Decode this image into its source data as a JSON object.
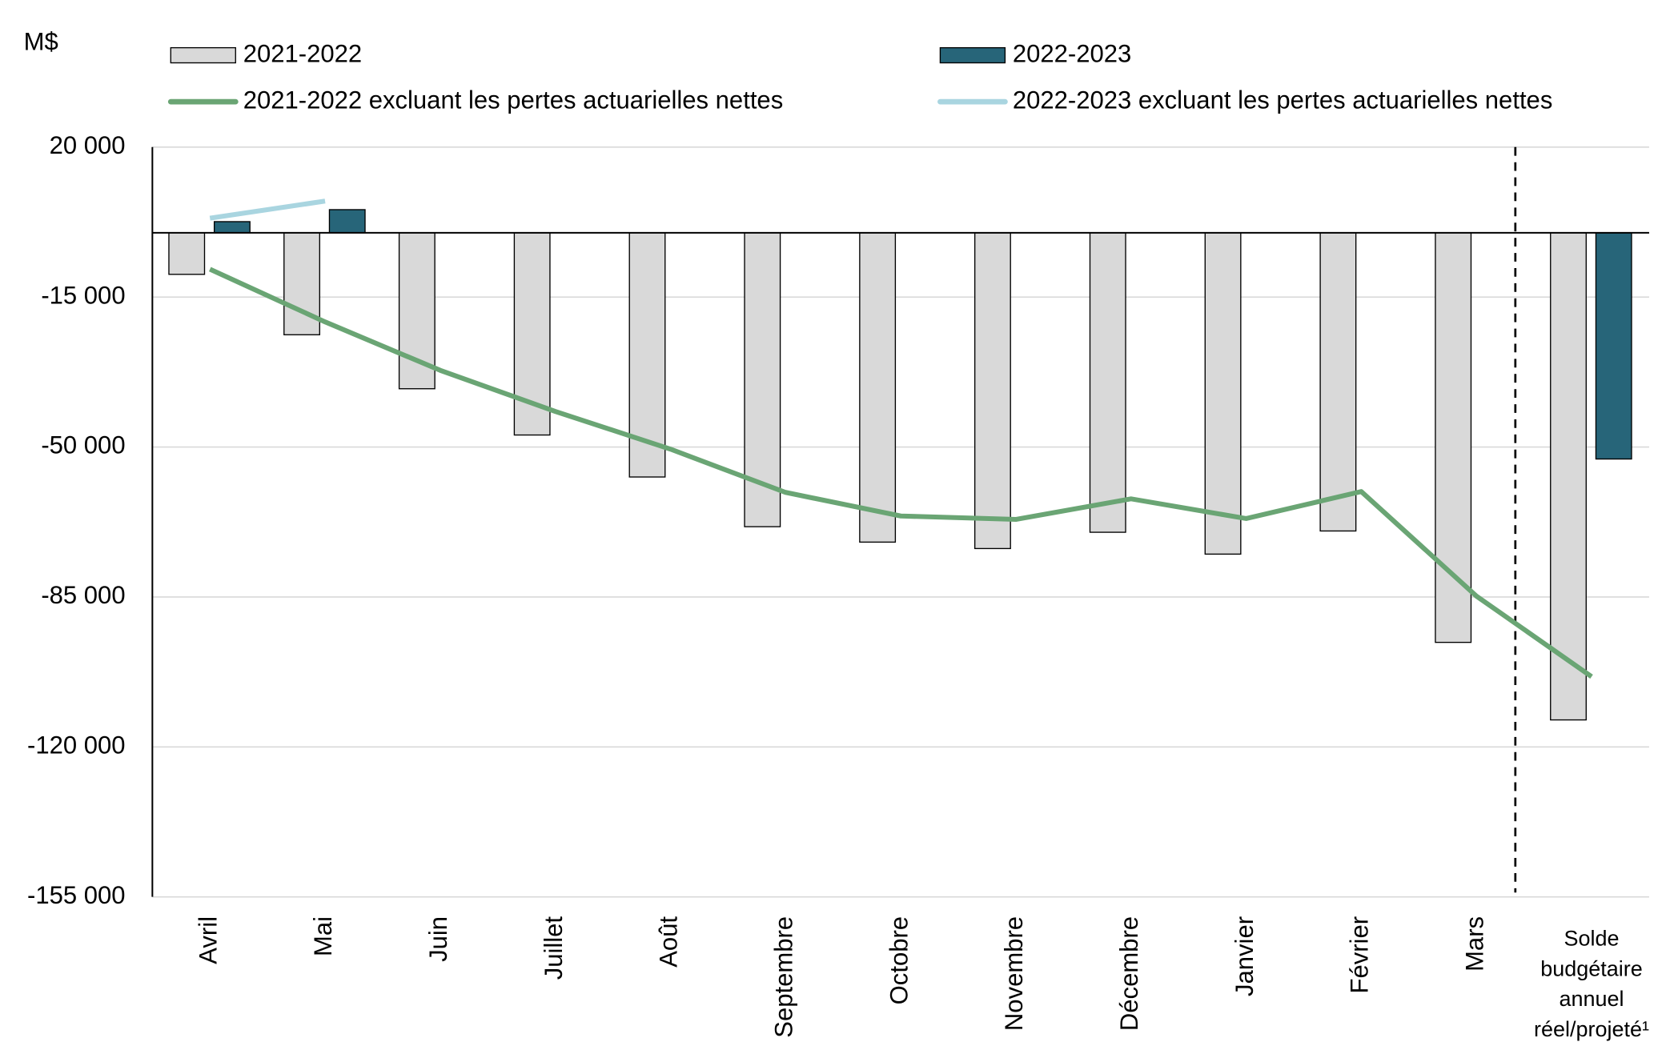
{
  "chart_data": {
    "type": "bar",
    "y_unit": "M$",
    "categories": [
      "Avril",
      "Mai",
      "Juin",
      "Juillet",
      "Août",
      "Septembre",
      "Octobre",
      "Novembre",
      "Décembre",
      "Janvier",
      "Février",
      "Mars",
      "Solde\nbudgétaire\nannuel\nréel/projeté¹"
    ],
    "series": [
      {
        "name": "2021-2022",
        "type": "bar",
        "color": "#d9d9d9",
        "values": [
          -9700,
          -23800,
          -36400,
          -47200,
          -57000,
          -68600,
          -72200,
          -73700,
          -69900,
          -75000,
          -69600,
          -95600,
          -113700
        ]
      },
      {
        "name": "2022-2023",
        "type": "bar",
        "color": "#276579",
        "values": [
          2600,
          5400,
          null,
          null,
          null,
          null,
          null,
          null,
          null,
          null,
          null,
          null,
          -52800
        ]
      },
      {
        "name": "2021-2022 excluant les pertes actuarielles nettes",
        "type": "line",
        "color": "#6aa574",
        "values": [
          -8500,
          -20800,
          -32100,
          -41700,
          -50500,
          -60600,
          -66100,
          -66900,
          -62100,
          -66700,
          -60400,
          -84800,
          -103600
        ]
      },
      {
        "name": "2022-2023 excluant les pertes actuarielles nettes",
        "type": "line",
        "color": "#a9d5e0",
        "values": [
          3400,
          7400,
          null,
          null,
          null,
          null,
          null,
          null,
          null,
          null,
          null,
          null,
          null
        ]
      }
    ],
    "ylim": [
      -155000,
      20000
    ],
    "yticks": [
      {
        "value": 20000,
        "label": "20 000"
      },
      {
        "value": -15000,
        "label": "-15 000"
      },
      {
        "value": -50000,
        "label": "-50 000"
      },
      {
        "value": -85000,
        "label": "-85 000"
      },
      {
        "value": -120000,
        "label": "-120 000"
      },
      {
        "value": -155000,
        "label": "-155 000"
      }
    ],
    "grid": true
  }
}
